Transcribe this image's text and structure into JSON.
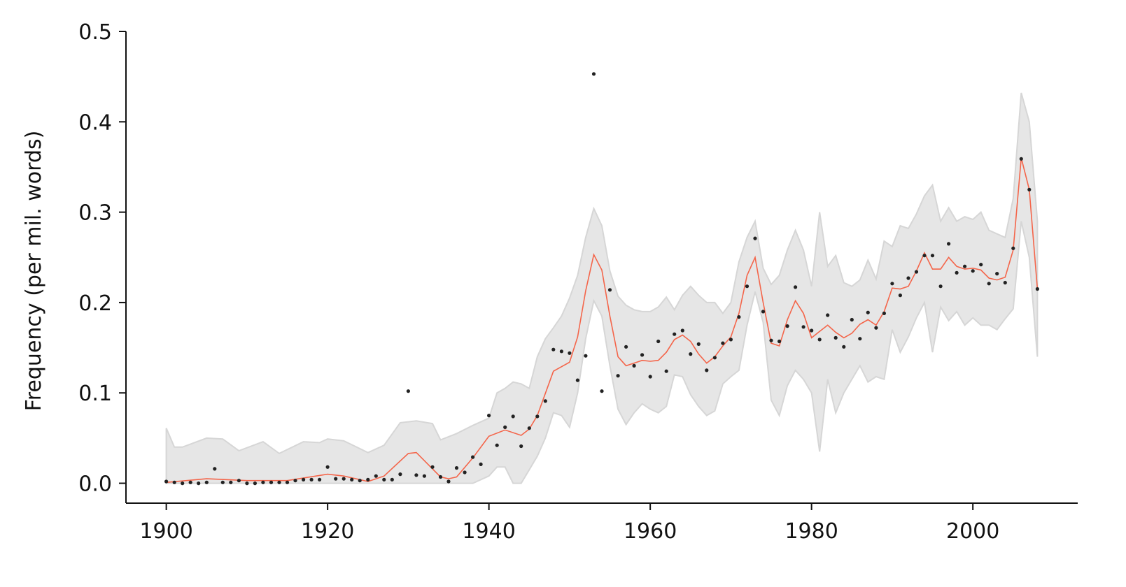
{
  "chart_data": {
    "type": "scatter",
    "title": "",
    "xlabel": "",
    "ylabel": "Frequency (per mil. words)",
    "xlim": [
      1895,
      2013
    ],
    "ylim": [
      -0.022,
      0.5
    ],
    "xticks": [
      1900,
      1920,
      1940,
      1960,
      1980,
      2000
    ],
    "yticks": [
      0.0,
      0.1,
      0.2,
      0.3,
      0.4,
      0.5
    ],
    "ytick_labels": [
      "0.0",
      "0.1",
      "0.2",
      "0.3",
      "0.4",
      "0.5"
    ],
    "grid": false,
    "legend": "none",
    "colors": {
      "points": "#222222",
      "smoothed_line": "#f4654a",
      "band_fill": "#e6e6e6",
      "band_edge": "#d6d6d6",
      "axes": "#111111"
    },
    "series": [
      {
        "kind": "points",
        "x": [
          1900,
          1901,
          1902,
          1903,
          1904,
          1905,
          1906,
          1907,
          1908,
          1909,
          1910,
          1911,
          1912,
          1913,
          1914,
          1915,
          1916,
          1917,
          1918,
          1919,
          1920,
          1921,
          1922,
          1923,
          1924,
          1925,
          1926,
          1927,
          1928,
          1929,
          1930,
          1931,
          1932,
          1933,
          1934,
          1935,
          1936,
          1937,
          1938,
          1939,
          1940,
          1941,
          1942,
          1943,
          1944,
          1945,
          1946,
          1947,
          1948,
          1949,
          1950,
          1951,
          1952,
          1953,
          1954,
          1955,
          1956,
          1957,
          1958,
          1959,
          1960,
          1961,
          1962,
          1963,
          1964,
          1965,
          1966,
          1967,
          1968,
          1969,
          1970,
          1971,
          1972,
          1973,
          1974,
          1975,
          1976,
          1977,
          1978,
          1979,
          1980,
          1981,
          1982,
          1983,
          1984,
          1985,
          1986,
          1987,
          1988,
          1989,
          1990,
          1991,
          1992,
          1993,
          1994,
          1995,
          1996,
          1997,
          1998,
          1999,
          2000,
          2001,
          2002,
          2003,
          2004,
          2005,
          2006,
          2007,
          2008
        ],
        "y": [
          0.002,
          0.001,
          0.0,
          0.001,
          0.0,
          0.001,
          0.016,
          0.001,
          0.001,
          0.003,
          0.0,
          0.0,
          0.001,
          0.001,
          0.001,
          0.001,
          0.003,
          0.004,
          0.004,
          0.004,
          0.018,
          0.005,
          0.005,
          0.004,
          0.003,
          0.004,
          0.008,
          0.004,
          0.004,
          0.01,
          0.102,
          0.009,
          0.008,
          0.018,
          0.007,
          0.002,
          0.017,
          0.012,
          0.029,
          0.021,
          0.075,
          0.042,
          0.062,
          0.074,
          0.041,
          0.061,
          0.074,
          0.091,
          0.148,
          0.146,
          0.144,
          0.114,
          0.141,
          0.453,
          0.102,
          0.214,
          0.119,
          0.151,
          0.13,
          0.142,
          0.118,
          0.157,
          0.124,
          0.165,
          0.169,
          0.143,
          0.154,
          0.125,
          0.139,
          0.155,
          0.159,
          0.184,
          0.218,
          0.271,
          0.19,
          0.158,
          0.157,
          0.174,
          0.217,
          0.173,
          0.169,
          0.159,
          0.186,
          0.161,
          0.151,
          0.181,
          0.16,
          0.189,
          0.172,
          0.188,
          0.221,
          0.208,
          0.227,
          0.234,
          0.252,
          0.252,
          0.218,
          0.265,
          0.233,
          0.24,
          0.235,
          0.242,
          0.221,
          0.232,
          0.222,
          0.26,
          0.359,
          0.325,
          0.215
        ]
      },
      {
        "kind": "line",
        "x": [
          1900,
          1905,
          1910,
          1915,
          1920,
          1922,
          1925,
          1927,
          1930,
          1931,
          1933,
          1934,
          1935,
          1936,
          1938,
          1940,
          1942,
          1944,
          1945,
          1946,
          1948,
          1950,
          1951,
          1952,
          1953,
          1954,
          1955,
          1956,
          1957,
          1958,
          1959,
          1960,
          1961,
          1962,
          1963,
          1964,
          1965,
          1966,
          1967,
          1968,
          1969,
          1970,
          1971,
          1972,
          1973,
          1974,
          1975,
          1976,
          1977,
          1978,
          1979,
          1980,
          1981,
          1982,
          1983,
          1984,
          1985,
          1986,
          1987,
          1988,
          1989,
          1990,
          1991,
          1992,
          1993,
          1994,
          1995,
          1996,
          1997,
          1998,
          1999,
          2000,
          2001,
          2002,
          2003,
          2004,
          2005,
          2006,
          2007,
          2008
        ],
        "y": [
          0.001,
          0.005,
          0.003,
          0.003,
          0.01,
          0.008,
          0.002,
          0.008,
          0.033,
          0.034,
          0.016,
          0.007,
          0.005,
          0.007,
          0.028,
          0.052,
          0.059,
          0.053,
          0.06,
          0.075,
          0.124,
          0.134,
          0.162,
          0.213,
          0.253,
          0.236,
          0.185,
          0.14,
          0.13,
          0.133,
          0.136,
          0.135,
          0.136,
          0.145,
          0.159,
          0.164,
          0.157,
          0.143,
          0.133,
          0.14,
          0.152,
          0.162,
          0.188,
          0.23,
          0.25,
          0.2,
          0.155,
          0.152,
          0.181,
          0.202,
          0.188,
          0.161,
          0.168,
          0.175,
          0.167,
          0.161,
          0.166,
          0.176,
          0.181,
          0.175,
          0.19,
          0.216,
          0.215,
          0.218,
          0.235,
          0.255,
          0.237,
          0.237,
          0.25,
          0.24,
          0.237,
          0.238,
          0.236,
          0.227,
          0.225,
          0.228,
          0.258,
          0.36,
          0.325,
          0.215
        ]
      },
      {
        "kind": "band",
        "x": [
          1900,
          1901,
          1902,
          1905,
          1907,
          1909,
          1912,
          1914,
          1917,
          1919,
          1920,
          1922,
          1925,
          1927,
          1929,
          1931,
          1933,
          1934,
          1936,
          1938,
          1940,
          1941,
          1942,
          1943,
          1944,
          1945,
          1946,
          1947,
          1948,
          1949,
          1950,
          1951,
          1952,
          1953,
          1954,
          1955,
          1956,
          1957,
          1958,
          1959,
          1960,
          1961,
          1962,
          1963,
          1964,
          1965,
          1966,
          1967,
          1968,
          1969,
          1970,
          1971,
          1972,
          1973,
          1974,
          1975,
          1976,
          1977,
          1978,
          1979,
          1980,
          1981,
          1982,
          1983,
          1984,
          1985,
          1986,
          1987,
          1988,
          1989,
          1990,
          1991,
          1992,
          1993,
          1994,
          1995,
          1996,
          1997,
          1998,
          1999,
          2000,
          2001,
          2002,
          2003,
          2004,
          2005,
          2006,
          2007,
          2008
        ],
        "upper": [
          0.061,
          0.04,
          0.04,
          0.05,
          0.049,
          0.036,
          0.046,
          0.033,
          0.046,
          0.045,
          0.049,
          0.047,
          0.034,
          0.042,
          0.067,
          0.069,
          0.066,
          0.048,
          0.055,
          0.064,
          0.072,
          0.1,
          0.105,
          0.112,
          0.11,
          0.105,
          0.14,
          0.16,
          0.172,
          0.185,
          0.205,
          0.23,
          0.272,
          0.304,
          0.285,
          0.235,
          0.207,
          0.197,
          0.192,
          0.19,
          0.19,
          0.195,
          0.206,
          0.192,
          0.208,
          0.218,
          0.208,
          0.2,
          0.2,
          0.188,
          0.2,
          0.245,
          0.272,
          0.29,
          0.238,
          0.22,
          0.23,
          0.258,
          0.28,
          0.258,
          0.218,
          0.3,
          0.24,
          0.252,
          0.222,
          0.218,
          0.225,
          0.247,
          0.226,
          0.268,
          0.262,
          0.285,
          0.282,
          0.298,
          0.318,
          0.33,
          0.29,
          0.305,
          0.29,
          0.295,
          0.292,
          0.3,
          0.28,
          0.276,
          0.272,
          0.315,
          0.432,
          0.4,
          0.29
        ],
        "lower": [
          0.0,
          0.0,
          0.0,
          0.0,
          0.0,
          0.0,
          0.0,
          0.0,
          0.0,
          0.0,
          0.0,
          0.0,
          0.0,
          0.0,
          0.0,
          0.0,
          0.0,
          0.0,
          0.0,
          0.0,
          0.008,
          0.018,
          0.018,
          0.0,
          0.0,
          0.015,
          0.03,
          0.05,
          0.078,
          0.075,
          0.062,
          0.1,
          0.16,
          0.202,
          0.185,
          0.13,
          0.082,
          0.065,
          0.078,
          0.088,
          0.082,
          0.078,
          0.085,
          0.12,
          0.118,
          0.098,
          0.085,
          0.075,
          0.08,
          0.11,
          0.118,
          0.125,
          0.175,
          0.212,
          0.178,
          0.092,
          0.075,
          0.108,
          0.125,
          0.115,
          0.1,
          0.035,
          0.115,
          0.078,
          0.1,
          0.115,
          0.13,
          0.112,
          0.118,
          0.115,
          0.17,
          0.145,
          0.162,
          0.183,
          0.2,
          0.145,
          0.195,
          0.18,
          0.19,
          0.175,
          0.183,
          0.175,
          0.175,
          0.17,
          0.182,
          0.193,
          0.29,
          0.25,
          0.14
        ]
      }
    ]
  }
}
